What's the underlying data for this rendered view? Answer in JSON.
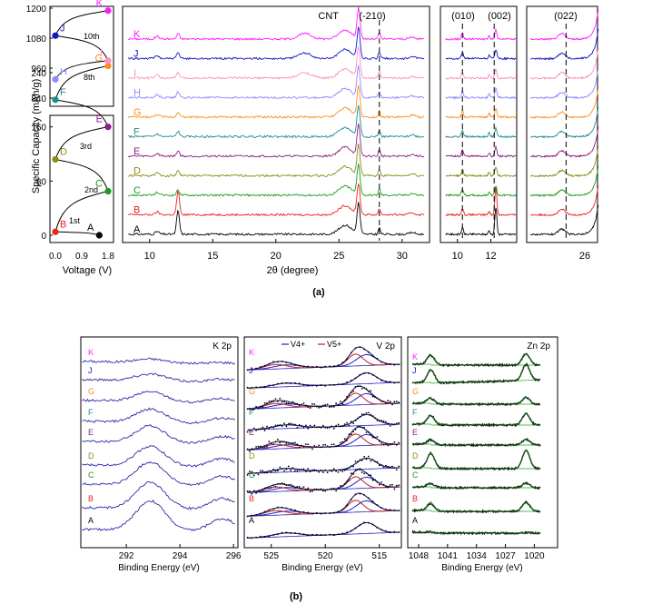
{
  "figure": {
    "caption_a": "(a)",
    "caption_b": "(b)"
  },
  "colors": {
    "A": "#000000",
    "B": "#e8231f",
    "C": "#1c9b1c",
    "D": "#8c8c14",
    "E": "#8b1f8b",
    "F": "#1f8c8c",
    "G": "#ff8c1a",
    "H": "#8c8cff",
    "I": "#ff8cc6",
    "J": "#1414c8",
    "K": "#ff1aff",
    "v4": "#2020c0",
    "v5": "#c02020",
    "zn_fit": "#117011"
  },
  "chart_data": [
    {
      "id": "charge-discharge",
      "type": "line",
      "xlabel": "Voltage (V)",
      "ylabel": "Specific Capacity (mAh/g)",
      "xticks": [
        "0.0",
        "0.9",
        "1.8"
      ],
      "yticks_lower": [
        "0",
        "80",
        "160",
        "240"
      ],
      "yticks_upper": [
        "840",
        "960",
        "1080",
        "1200"
      ],
      "cycle_labels": [
        "1st",
        "2nd",
        "3rd",
        "8th",
        "10th"
      ],
      "points": [
        {
          "label": "A",
          "voltage": 1.5,
          "capacity": 0
        },
        {
          "label": "B",
          "voltage": 0.0,
          "capacity": 5
        },
        {
          "label": "C",
          "voltage": 1.8,
          "capacity": 65
        },
        {
          "label": "D",
          "voltage": 0.0,
          "capacity": 112
        },
        {
          "label": "E",
          "voltage": 1.8,
          "capacity": 160
        },
        {
          "label": "F",
          "voltage": 0.0,
          "capacity": 200
        },
        {
          "label": "G",
          "voltage": 1.8,
          "capacity": 250
        },
        {
          "label": "H",
          "voltage": 0.0,
          "capacity": 915
        },
        {
          "label": "I",
          "voltage": 1.8,
          "capacity": 990
        },
        {
          "label": "J",
          "voltage": 0.0,
          "capacity": 1090
        },
        {
          "label": "K",
          "voltage": 1.8,
          "capacity": 1190
        }
      ]
    },
    {
      "id": "xrd",
      "type": "line",
      "xlabel": "2θ (degree)",
      "xticks": [
        "10",
        "15",
        "20",
        "25",
        "30"
      ],
      "xticks_mid": [
        "10",
        "12"
      ],
      "xticks_right": [
        "26"
      ],
      "annotations": [
        "CNT",
        "(-210)",
        "(010)",
        "(002)",
        "(022)"
      ],
      "series": [
        {
          "name": "A"
        },
        {
          "name": "B"
        },
        {
          "name": "C"
        },
        {
          "name": "D"
        },
        {
          "name": "E"
        },
        {
          "name": "F"
        },
        {
          "name": "G"
        },
        {
          "name": "H"
        },
        {
          "name": "I"
        },
        {
          "name": "J"
        },
        {
          "name": "K"
        }
      ],
      "peaks_2theta": [
        12.2,
        26.5,
        28.2
      ]
    },
    {
      "id": "xps-k2p",
      "type": "line",
      "title": "K 2p",
      "xlabel": "Binding Energy (eV)",
      "xticks": [
        "292",
        "294",
        "296"
      ],
      "series": [
        {
          "name": "K"
        },
        {
          "name": "J"
        },
        {
          "name": "G"
        },
        {
          "name": "F"
        },
        {
          "name": "E"
        },
        {
          "name": "D"
        },
        {
          "name": "C"
        },
        {
          "name": "B"
        },
        {
          "name": "A"
        }
      ],
      "peaks_eV": [
        292.9,
        295.6
      ]
    },
    {
      "id": "xps-v2p",
      "type": "line",
      "title": "V 2p",
      "legend": [
        "V4+",
        "V5+"
      ],
      "xlabel": "Binding Energy (eV)",
      "xticks": [
        "525",
        "520",
        "515"
      ],
      "series": [
        {
          "name": "K"
        },
        {
          "name": "J"
        },
        {
          "name": "G"
        },
        {
          "name": "F"
        },
        {
          "name": "E"
        },
        {
          "name": "D"
        },
        {
          "name": "C"
        },
        {
          "name": "B"
        },
        {
          "name": "A"
        }
      ],
      "peaks_eV": [
        523.9,
        516.6
      ]
    },
    {
      "id": "xps-zn2p",
      "type": "line",
      "title": "Zn 2p",
      "xlabel": "Binding Energy (eV)",
      "xticks": [
        "1048",
        "1041",
        "1034",
        "1027",
        "1020"
      ],
      "series": [
        {
          "name": "K"
        },
        {
          "name": "J"
        },
        {
          "name": "G"
        },
        {
          "name": "F"
        },
        {
          "name": "E"
        },
        {
          "name": "D"
        },
        {
          "name": "C"
        },
        {
          "name": "B"
        },
        {
          "name": "A"
        }
      ],
      "peaks_eV": [
        1045,
        1022
      ]
    }
  ]
}
